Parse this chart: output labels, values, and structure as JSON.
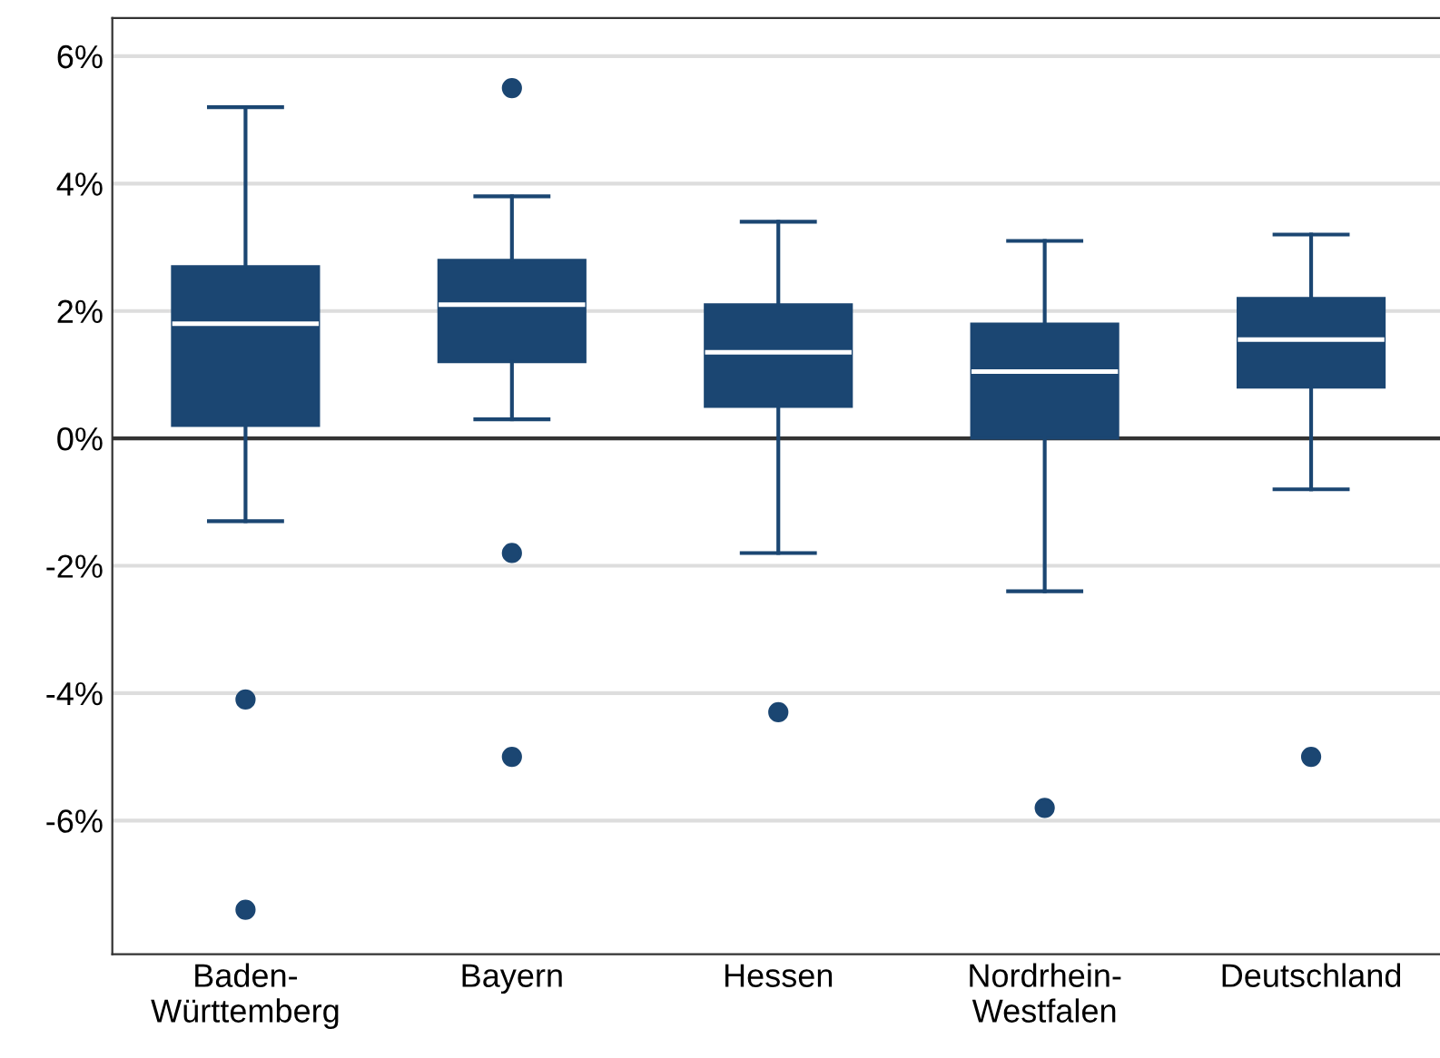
{
  "chart_data": {
    "type": "box",
    "categories": [
      "Baden-\nWürttemberg",
      "Bayern",
      "Hessen",
      "Nordrhein-\nWestfalen",
      "Deutschland"
    ],
    "color": "#1b4672",
    "boxes": [
      {
        "low": -1.3,
        "q1": 0.2,
        "median": 1.8,
        "q3": 2.7,
        "high": 5.2,
        "outliers": [
          -4.1,
          -7.4
        ]
      },
      {
        "low": 0.3,
        "q1": 1.2,
        "median": 2.1,
        "q3": 2.8,
        "high": 3.8,
        "outliers": [
          5.5,
          -1.8,
          -5.0
        ]
      },
      {
        "low": -1.8,
        "q1": 0.5,
        "median": 1.35,
        "q3": 2.1,
        "high": 3.4,
        "outliers": [
          -4.3
        ]
      },
      {
        "low": -2.4,
        "q1": 0.0,
        "median": 1.05,
        "q3": 1.8,
        "high": 3.1,
        "outliers": [
          -5.8
        ]
      },
      {
        "low": -0.8,
        "q1": 0.8,
        "median": 1.55,
        "q3": 2.2,
        "high": 3.2,
        "outliers": [
          -5.0
        ]
      }
    ],
    "ylim": [
      -8.1,
      6.6
    ],
    "yticks": [
      {
        "value": -6,
        "label": "-6%"
      },
      {
        "value": -4,
        "label": "-4%"
      },
      {
        "value": -2,
        "label": "-2%"
      },
      {
        "value": 0,
        "label": "0%"
      },
      {
        "value": 2,
        "label": "2%"
      },
      {
        "value": 4,
        "label": "4%"
      },
      {
        "value": 6,
        "label": "6%"
      }
    ],
    "grid": "y",
    "ref_lines": [
      {
        "axis": "y",
        "value": 0,
        "color": "#333333"
      }
    ]
  }
}
